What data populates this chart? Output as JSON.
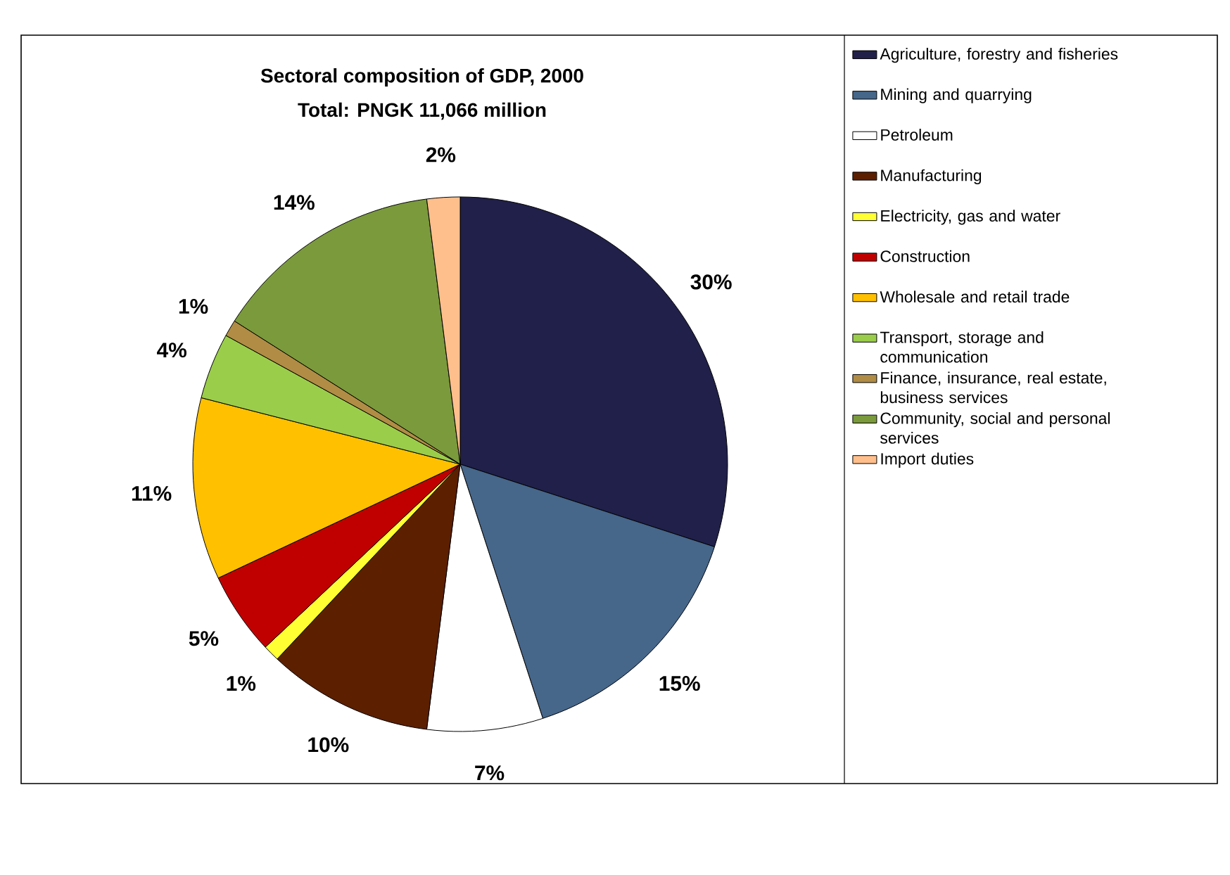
{
  "chart_data": {
    "type": "pie",
    "title": "Sectoral composition of GDP, 2000",
    "subtitle": "Total: PNGK 11,066 million",
    "categories": [
      "Agriculture, forestry and fisheries",
      "Mining and quarrying",
      "Petroleum",
      "Manufacturing",
      "Electricity, gas and water",
      "Construction",
      "Wholesale and retail trade",
      "Transport, storage and communication",
      "Finance, insurance, real estate, business services",
      "Community, social and personal services",
      "Import duties"
    ],
    "values": [
      30,
      15,
      7,
      10,
      1,
      5,
      11,
      4,
      1,
      14,
      2
    ],
    "value_labels": [
      "30%",
      "15%",
      "7%",
      "10%",
      "1%",
      "5%",
      "11%",
      "4%",
      "1%",
      "14%",
      "2%"
    ],
    "colors": [
      "#20204a",
      "#46668a",
      "#ffffff",
      "#5c1f00",
      "#ffff33",
      "#c00000",
      "#ffc000",
      "#9acd4a",
      "#b08c45",
      "#7a9a3c",
      "#ffbf8c"
    ],
    "legend": "right"
  }
}
